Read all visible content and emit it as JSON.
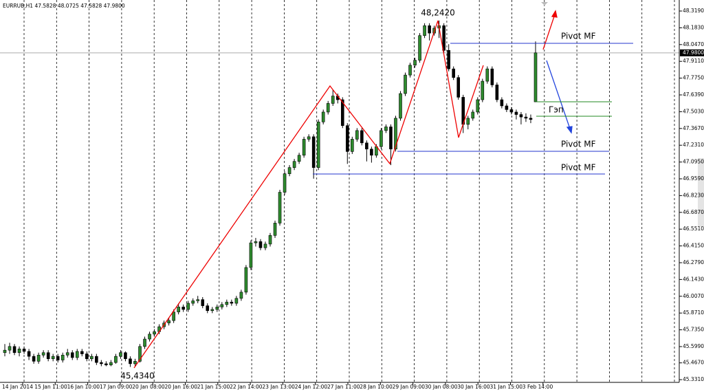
{
  "chart_data": {
    "type": "candlestick",
    "title": "EURRUB,H1  47.5828 48.0725 47.5828 47.9800",
    "up_color": "#2e8b2e",
    "down_color": "#000000",
    "ylim": [
      45.309,
      48.386
    ],
    "yticks": [
      {
        "value": 48.319,
        "label": "48.3190"
      },
      {
        "value": 48.183,
        "label": "48.1830"
      },
      {
        "value": 48.047,
        "label": "48.0470"
      },
      {
        "value": 47.911,
        "label": "47.9110"
      },
      {
        "value": 47.775,
        "label": "47.7750"
      },
      {
        "value": 47.639,
        "label": "47.6390"
      },
      {
        "value": 47.503,
        "label": "47.5030"
      },
      {
        "value": 47.367,
        "label": "47.3670"
      },
      {
        "value": 47.231,
        "label": "47.2310"
      },
      {
        "value": 47.095,
        "label": "47.0950"
      },
      {
        "value": 46.959,
        "label": "46.9590"
      },
      {
        "value": 46.823,
        "label": "46.8230"
      },
      {
        "value": 46.687,
        "label": "46.6870"
      },
      {
        "value": 46.551,
        "label": "46.5510"
      },
      {
        "value": 46.415,
        "label": "46.4150"
      },
      {
        "value": 46.279,
        "label": "46.2790"
      },
      {
        "value": 46.143,
        "label": "46.1430"
      },
      {
        "value": 46.007,
        "label": "46.0070"
      },
      {
        "value": 45.871,
        "label": "45.8710"
      },
      {
        "value": 45.735,
        "label": "45.7350"
      },
      {
        "value": 45.599,
        "label": "45.5990"
      },
      {
        "value": 45.467,
        "label": "45.4670"
      },
      {
        "value": 45.331,
        "label": "45.3310"
      }
    ],
    "current_price": {
      "value": 47.98,
      "label": "47.9800"
    },
    "xlabels": [
      "14 Jan 2014",
      "15 Jan 11:00",
      "16 Jan 10:00",
      "17 Jan 09:00",
      "20 Jan 08:00",
      "20 Jan 16:00",
      "21 Jan 15:00",
      "22 Jan 14:00",
      "23 Jan 13:00",
      "24 Jan 12:00",
      "27 Jan 11:00",
      "28 Jan 10:00",
      "29 Jan 09:00",
      "30 Jan 08:00",
      "30 Jan 16:00",
      "31 Jan 15:00",
      "3 Feb 14:00"
    ],
    "annotations": {
      "high": "48,2420",
      "low": "45,4340",
      "pivot_top": "Pivot MF",
      "pivot_mid": "Pivot MF",
      "pivot_low": "Pivot MF",
      "gap": "Гэп"
    },
    "candles": [
      [
        45.55,
        45.62,
        45.52,
        45.57
      ],
      [
        45.57,
        45.63,
        45.54,
        45.6
      ],
      [
        45.6,
        45.62,
        45.53,
        45.55
      ],
      [
        45.55,
        45.6,
        45.52,
        45.58
      ],
      [
        45.58,
        45.6,
        45.54,
        45.56
      ],
      [
        45.56,
        45.58,
        45.49,
        45.52
      ],
      [
        45.52,
        45.54,
        45.46,
        45.48
      ],
      [
        45.48,
        45.55,
        45.46,
        45.53
      ],
      [
        45.53,
        45.57,
        45.51,
        45.55
      ],
      [
        45.55,
        45.57,
        45.48,
        45.5
      ],
      [
        45.5,
        45.54,
        45.48,
        45.52
      ],
      [
        45.52,
        45.54,
        45.47,
        45.49
      ],
      [
        45.49,
        45.55,
        45.47,
        45.53
      ],
      [
        45.53,
        45.58,
        45.51,
        45.55
      ],
      [
        45.55,
        45.57,
        45.49,
        45.51
      ],
      [
        45.51,
        45.58,
        45.49,
        45.56
      ],
      [
        45.56,
        45.58,
        45.52,
        45.54
      ],
      [
        45.54,
        45.56,
        45.48,
        45.5
      ],
      [
        45.5,
        45.54,
        45.48,
        45.52
      ],
      [
        45.52,
        45.54,
        45.45,
        45.47
      ],
      [
        45.47,
        45.49,
        45.44,
        45.46
      ],
      [
        45.46,
        45.48,
        45.44,
        45.45
      ],
      [
        45.45,
        45.49,
        45.44,
        45.47
      ],
      [
        45.47,
        45.54,
        45.46,
        45.52
      ],
      [
        45.52,
        45.57,
        45.5,
        45.55
      ],
      [
        45.55,
        45.56,
        45.48,
        45.5
      ],
      [
        45.5,
        45.52,
        45.434,
        45.46
      ],
      [
        45.46,
        45.5,
        45.44,
        45.48
      ],
      [
        45.48,
        45.62,
        45.47,
        45.6
      ],
      [
        45.6,
        45.68,
        45.58,
        45.66
      ],
      [
        45.66,
        45.72,
        45.64,
        45.7
      ],
      [
        45.7,
        45.74,
        45.68,
        45.72
      ],
      [
        45.72,
        45.78,
        45.7,
        45.76
      ],
      [
        45.76,
        45.81,
        45.74,
        45.79
      ],
      [
        45.79,
        45.83,
        45.77,
        45.81
      ],
      [
        45.81,
        45.9,
        45.79,
        45.88
      ],
      [
        45.88,
        45.95,
        45.86,
        45.92
      ],
      [
        45.92,
        45.94,
        45.88,
        45.9
      ],
      [
        45.9,
        45.97,
        45.88,
        45.95
      ],
      [
        45.95,
        45.99,
        45.93,
        45.97
      ],
      [
        45.97,
        46.01,
        45.95,
        45.98
      ],
      [
        45.98,
        46.0,
        45.91,
        45.93
      ],
      [
        45.93,
        45.95,
        45.87,
        45.89
      ],
      [
        45.89,
        45.92,
        45.87,
        45.9
      ],
      [
        45.9,
        45.94,
        45.88,
        45.92
      ],
      [
        45.92,
        45.96,
        45.9,
        45.94
      ],
      [
        45.94,
        45.98,
        45.92,
        45.96
      ],
      [
        45.96,
        45.98,
        45.93,
        45.95
      ],
      [
        45.95,
        46.01,
        45.93,
        45.99
      ],
      [
        45.99,
        46.06,
        45.97,
        46.04
      ],
      [
        46.04,
        46.26,
        46.02,
        46.24
      ],
      [
        46.24,
        46.46,
        46.22,
        46.44
      ],
      [
        46.44,
        46.48,
        46.41,
        46.45
      ],
      [
        46.45,
        46.47,
        46.38,
        46.4
      ],
      [
        46.4,
        46.45,
        46.38,
        46.43
      ],
      [
        46.43,
        46.52,
        46.41,
        46.5
      ],
      [
        46.5,
        46.62,
        46.48,
        46.6
      ],
      [
        46.6,
        46.87,
        46.58,
        46.85
      ],
      [
        46.85,
        47.02,
        46.83,
        47.0
      ],
      [
        47.0,
        47.07,
        46.98,
        47.05
      ],
      [
        47.05,
        47.12,
        47.03,
        47.1
      ],
      [
        47.1,
        47.17,
        47.08,
        47.15
      ],
      [
        47.15,
        47.3,
        47.13,
        47.28
      ],
      [
        47.28,
        47.32,
        47.26,
        47.3
      ],
      [
        47.3,
        47.32,
        46.96,
        47.05
      ],
      [
        47.05,
        47.44,
        47.03,
        47.42
      ],
      [
        47.42,
        47.52,
        47.4,
        47.5
      ],
      [
        47.5,
        47.59,
        47.48,
        47.57
      ],
      [
        47.57,
        47.68,
        47.55,
        47.63
      ],
      [
        47.63,
        47.65,
        47.57,
        47.6
      ],
      [
        47.6,
        47.62,
        47.37,
        47.39
      ],
      [
        47.39,
        47.41,
        47.08,
        47.18
      ],
      [
        47.18,
        47.3,
        47.16,
        47.28
      ],
      [
        47.28,
        47.37,
        47.26,
        47.35
      ],
      [
        47.35,
        47.37,
        47.23,
        47.25
      ],
      [
        47.25,
        47.27,
        47.1,
        47.2
      ],
      [
        47.2,
        47.22,
        47.09,
        47.15
      ],
      [
        47.15,
        47.24,
        47.13,
        47.22
      ],
      [
        47.22,
        47.37,
        47.2,
        47.35
      ],
      [
        47.35,
        47.4,
        47.33,
        47.38
      ],
      [
        47.38,
        47.4,
        47.07,
        47.2
      ],
      [
        47.2,
        47.47,
        47.18,
        47.45
      ],
      [
        47.45,
        47.67,
        47.43,
        47.65
      ],
      [
        47.65,
        47.82,
        47.63,
        47.8
      ],
      [
        47.8,
        47.9,
        47.78,
        47.88
      ],
      [
        47.88,
        47.94,
        47.86,
        47.92
      ],
      [
        47.92,
        48.14,
        47.9,
        48.12
      ],
      [
        48.12,
        48.22,
        48.1,
        48.2
      ],
      [
        48.2,
        48.22,
        48.08,
        48.14
      ],
      [
        48.14,
        48.2,
        48.12,
        48.18
      ],
      [
        48.18,
        48.242,
        48.1,
        48.2
      ],
      [
        48.2,
        48.22,
        47.98,
        48.0
      ],
      [
        48.0,
        48.05,
        47.83,
        47.85
      ],
      [
        47.85,
        47.87,
        47.76,
        47.78
      ],
      [
        47.78,
        47.8,
        47.6,
        47.62
      ],
      [
        47.62,
        47.64,
        47.33,
        47.4
      ],
      [
        47.4,
        47.47,
        47.36,
        47.45
      ],
      [
        47.45,
        47.52,
        47.43,
        47.5
      ],
      [
        47.5,
        47.62,
        47.48,
        47.6
      ],
      [
        47.6,
        47.77,
        47.58,
        47.75
      ],
      [
        47.75,
        47.87,
        47.73,
        47.85
      ],
      [
        47.85,
        47.87,
        47.7,
        47.72
      ],
      [
        47.72,
        47.74,
        47.58,
        47.6
      ],
      [
        47.6,
        47.62,
        47.53,
        47.55
      ],
      [
        47.55,
        47.57,
        47.5,
        47.52
      ],
      [
        47.52,
        47.54,
        47.48,
        47.5
      ],
      [
        47.5,
        47.52,
        47.44,
        47.48
      ],
      [
        47.48,
        47.5,
        47.4,
        47.46
      ],
      [
        47.46,
        47.49,
        47.42,
        47.45
      ],
      [
        47.45,
        47.48,
        47.41,
        47.44
      ],
      [
        47.5828,
        48.0725,
        47.5828,
        47.98
      ]
    ]
  }
}
